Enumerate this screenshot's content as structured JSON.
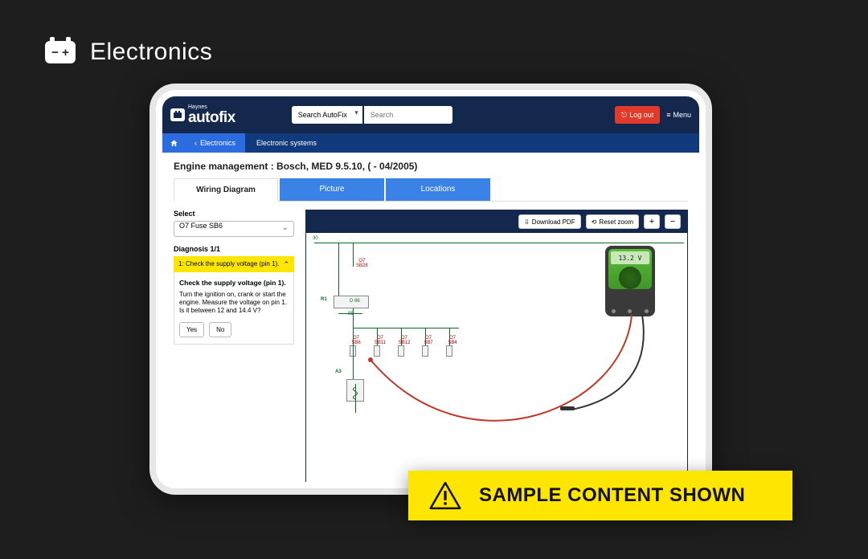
{
  "page": {
    "section_title": "Electronics"
  },
  "topbar": {
    "logo_small": "Haynes",
    "logo_big": "autofix",
    "search_select": "Search AutoFix",
    "search_placeholder": "Search",
    "logout": "Log out",
    "menu": "Menu"
  },
  "breadcrumb": {
    "back": "Electronics",
    "current": "Electronic systems"
  },
  "system_title": "Engine management :  Bosch, MED 9.5.10, ( - 04/2005)",
  "tabs": {
    "wiring": "Wiring Diagram",
    "picture": "Picture",
    "locations": "Locations"
  },
  "select": {
    "label": "Select",
    "value": "O7  Fuse  SB6"
  },
  "diagnosis": {
    "count": "Diagnosis 1/1",
    "step_header": "1: Check the supply voltage (pin 1).",
    "step_title": "Check the supply voltage (pin 1).",
    "step_body": "Turn the ignition on, crank or start the engine. Measure the voltage on pin 1. Is it between 12 and 14.4 V?",
    "yes": "Yes",
    "no": "No"
  },
  "diagram_toolbar": {
    "download": "Download PDF",
    "reset": "Reset zoom",
    "plus": "+",
    "minus": "−"
  },
  "schematic": {
    "bus_label": "30",
    "r1": "R1",
    "r1_sub": "D 86",
    "r1_sub2": "95",
    "top_fuse": {
      "name": "O7",
      "sub": "SB28"
    },
    "bottom_fuses": [
      {
        "name": "O7",
        "sub": "SB6"
      },
      {
        "name": "O7",
        "sub": "SB11"
      },
      {
        "name": "O7",
        "sub": "SB12"
      },
      {
        "name": "O7",
        "sub": "SB7"
      },
      {
        "name": "O7",
        "sub": "SB4"
      }
    ],
    "a3": "A3",
    "a3_pin": "1"
  },
  "meter": {
    "reading": "13.2 V"
  },
  "banner": {
    "text": "SAMPLE CONTENT SHOWN"
  },
  "colors": {
    "bg": "#1e1e1e",
    "navy": "#14284e",
    "blue": "#2b6de0",
    "tab_blue": "#3b82e6",
    "yellow": "#ffe600",
    "red": "#e13a2b",
    "wire_green": "#0a6b2a"
  }
}
